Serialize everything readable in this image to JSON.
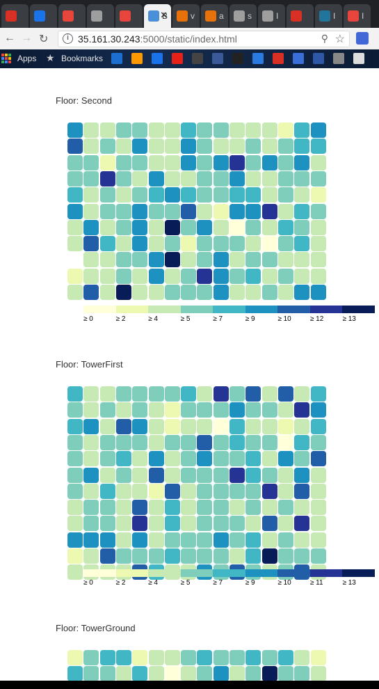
{
  "browser": {
    "tabs": [
      {
        "label": "",
        "color": "#d93025"
      },
      {
        "label": "",
        "color": "#1a73e8"
      },
      {
        "label": "",
        "color": "#e8453c"
      },
      {
        "label": "",
        "color": "#9e9e9e"
      },
      {
        "label": "",
        "color": "#e8453c"
      },
      {
        "label": "B",
        "color": "#4a90d9",
        "active": true
      },
      {
        "label": "v",
        "color": "#e8710a"
      },
      {
        "label": "a",
        "color": "#e8710a"
      },
      {
        "label": "s",
        "color": "#9e9e9e"
      },
      {
        "label": "I",
        "color": "#9e9e9e"
      },
      {
        "label": "",
        "color": "#d93025"
      },
      {
        "label": "I",
        "color": "#21759b"
      },
      {
        "label": "I",
        "color": "#e8453c"
      }
    ],
    "close_glyph": "✕",
    "url_host": "35.161.30.243",
    "url_rest": ":5000/static/index.html",
    "bookmarks": {
      "apps": "Apps",
      "bookmarks": "Bookmarks"
    }
  },
  "legend_colors": [
    "#ffffd9",
    "#edf8b1",
    "#c7e9b4",
    "#7fcdbb",
    "#41b6c4",
    "#1d91c0",
    "#225ea8",
    "#253494",
    "#081d58"
  ],
  "floors": [
    {
      "title": "Floor: Second",
      "legend_labels": [
        "≥ 0",
        "≥ 2",
        "≥ 4",
        "≥ 5",
        "≥ 7",
        "≥ 9",
        "≥ 10",
        "≥ 12",
        "≥ 13"
      ],
      "grid": [
        [
          5,
          2,
          2,
          3,
          3,
          2,
          2,
          4,
          3,
          3,
          2,
          2,
          2,
          1,
          4,
          5
        ],
        [
          6,
          2,
          3,
          2,
          5,
          2,
          2,
          5,
          3,
          2,
          2,
          3,
          2,
          3,
          4,
          4
        ],
        [
          3,
          3,
          1,
          3,
          3,
          2,
          2,
          5,
          3,
          5,
          7,
          3,
          5,
          3,
          5,
          2
        ],
        [
          3,
          3,
          7,
          3,
          2,
          5,
          2,
          2,
          3,
          3,
          5,
          2,
          2,
          3,
          3,
          3
        ],
        [
          4,
          2,
          3,
          2,
          3,
          4,
          5,
          4,
          3,
          3,
          4,
          4,
          2,
          3,
          2,
          1
        ],
        [
          5,
          2,
          3,
          3,
          5,
          3,
          3,
          6,
          2,
          1,
          5,
          5,
          7,
          2,
          4,
          3
        ],
        [
          2,
          5,
          2,
          3,
          5,
          2,
          8,
          3,
          5,
          2,
          0,
          3,
          2,
          4,
          3,
          2
        ],
        [
          2,
          6,
          4,
          2,
          5,
          2,
          3,
          1,
          3,
          3,
          3,
          2,
          0,
          3,
          4,
          2
        ],
        [
          -1,
          2,
          2,
          3,
          3,
          5,
          8,
          2,
          3,
          5,
          2,
          3,
          3,
          2,
          2,
          2
        ],
        [
          1,
          2,
          2,
          3,
          2,
          5,
          2,
          3,
          7,
          5,
          3,
          4,
          2,
          3,
          2,
          2
        ],
        [
          2,
          6,
          2,
          8,
          2,
          2,
          3,
          3,
          3,
          5,
          2,
          2,
          3,
          2,
          5,
          5
        ]
      ]
    },
    {
      "title": "Floor: TowerFirst",
      "legend_labels": [
        "≥ 0",
        "≥ 2",
        "≥ 4",
        "≥ 5",
        "≥ 7",
        "≥ 9",
        "≥ 10",
        "≥ 11",
        "≥ 13"
      ],
      "grid": [
        [
          4,
          2,
          2,
          3,
          3,
          3,
          3,
          4,
          2,
          7,
          3,
          6,
          2,
          6,
          2,
          4
        ],
        [
          3,
          2,
          3,
          2,
          3,
          2,
          1,
          3,
          3,
          3,
          5,
          3,
          3,
          2,
          7,
          5
        ],
        [
          4,
          5,
          2,
          6,
          5,
          2,
          1,
          2,
          2,
          0,
          4,
          2,
          2,
          1,
          2,
          4
        ],
        [
          3,
          2,
          3,
          3,
          3,
          2,
          3,
          3,
          6,
          3,
          4,
          3,
          3,
          0,
          4,
          3
        ],
        [
          3,
          2,
          3,
          4,
          2,
          5,
          2,
          3,
          5,
          3,
          3,
          4,
          2,
          5,
          3,
          6
        ],
        [
          3,
          5,
          2,
          3,
          2,
          6,
          2,
          3,
          3,
          3,
          7,
          4,
          3,
          2,
          5,
          2
        ],
        [
          3,
          2,
          4,
          2,
          2,
          1,
          6,
          2,
          3,
          3,
          3,
          3,
          7,
          2,
          6,
          2
        ],
        [
          2,
          3,
          3,
          2,
          6,
          2,
          4,
          2,
          3,
          3,
          2,
          3,
          2,
          3,
          2,
          2
        ],
        [
          2,
          3,
          3,
          2,
          7,
          2,
          4,
          2,
          3,
          3,
          3,
          2,
          6,
          2,
          7,
          2
        ],
        [
          5,
          5,
          5,
          2,
          5,
          2,
          3,
          3,
          3,
          5,
          3,
          4,
          2,
          3,
          2,
          2
        ],
        [
          1,
          2,
          6,
          3,
          3,
          3,
          4,
          3,
          3,
          3,
          2,
          4,
          8,
          3,
          3,
          3
        ],
        [
          2,
          2,
          2,
          2,
          6,
          4,
          2,
          2,
          5,
          3,
          6,
          3,
          2,
          3,
          6,
          2
        ]
      ]
    },
    {
      "title": "Floor: TowerGround",
      "legend_labels": [],
      "grid": [
        [
          1,
          3,
          4,
          4,
          1,
          2,
          2,
          3,
          4,
          3,
          3,
          4,
          3,
          4,
          2,
          1
        ],
        [
          4,
          3,
          3,
          2,
          4,
          2,
          0,
          2,
          3,
          5,
          2,
          3,
          8,
          3,
          3,
          2
        ]
      ]
    }
  ]
}
